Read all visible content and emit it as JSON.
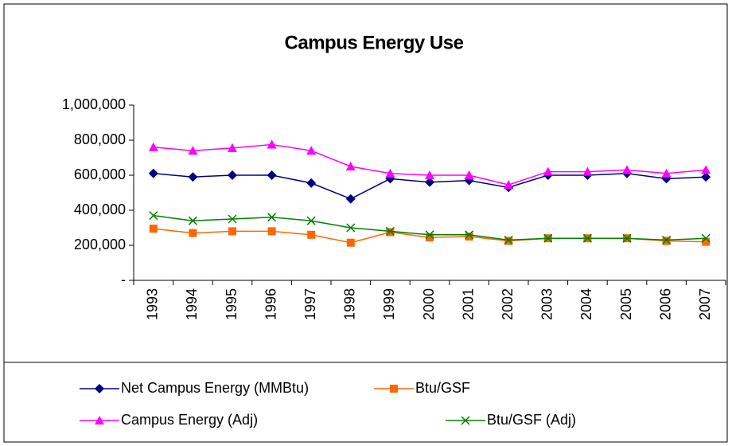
{
  "chart_data": {
    "type": "line",
    "title": "Campus Energy Use",
    "categories": [
      "1993",
      "1994",
      "1995",
      "1996",
      "1997",
      "1998",
      "1999",
      "2000",
      "2001",
      "2002",
      "2003",
      "2004",
      "2005",
      "2006",
      "2007"
    ],
    "series": [
      {
        "name": "Net Campus Energy (MMBtu)",
        "color": "#000080",
        "marker": "diamond",
        "values": [
          610000,
          590000,
          600000,
          600000,
          555000,
          465000,
          580000,
          560000,
          570000,
          530000,
          600000,
          600000,
          610000,
          580000,
          590000
        ]
      },
      {
        "name": "Btu/GSF",
        "color": "#ff6600",
        "marker": "square",
        "values": [
          295000,
          270000,
          280000,
          280000,
          260000,
          215000,
          275000,
          245000,
          250000,
          225000,
          240000,
          240000,
          240000,
          225000,
          220000
        ]
      },
      {
        "name": "Campus Energy (Adj)",
        "color": "#ff00ff",
        "marker": "triangle",
        "values": [
          760000,
          740000,
          755000,
          775000,
          740000,
          650000,
          610000,
          600000,
          600000,
          545000,
          620000,
          620000,
          630000,
          610000,
          630000
        ]
      },
      {
        "name": "Btu/GSF (Adj)",
        "color": "#008000",
        "marker": "x",
        "values": [
          370000,
          340000,
          350000,
          360000,
          340000,
          300000,
          280000,
          260000,
          260000,
          230000,
          240000,
          240000,
          240000,
          230000,
          240000
        ]
      }
    ],
    "ylim": [
      0,
      1000000
    ],
    "yticks": [
      {
        "value": 0,
        "label": "-"
      },
      {
        "value": 200000,
        "label": "200,000"
      },
      {
        "value": 400000,
        "label": "400,000"
      },
      {
        "value": 600000,
        "label": "600,000"
      },
      {
        "value": 800000,
        "label": "800,000"
      },
      {
        "value": 1000000,
        "label": "1,000,000"
      }
    ],
    "grid": false,
    "legend": "bottom"
  }
}
